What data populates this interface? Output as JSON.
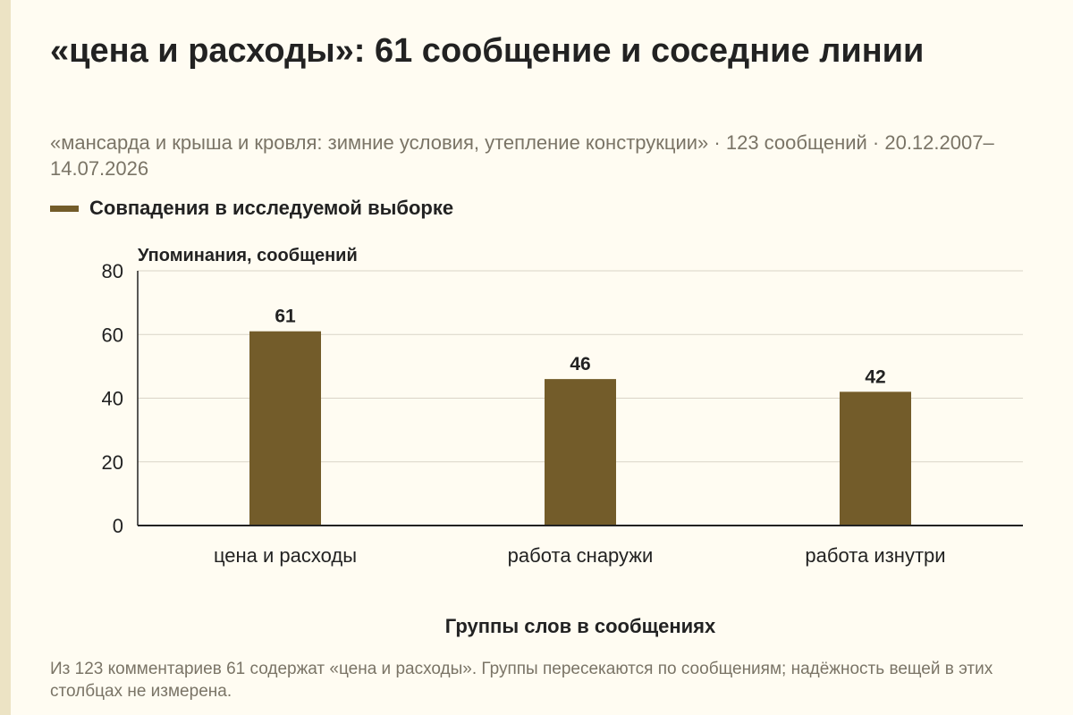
{
  "title": "«цена и расходы»: 61 сообщение и соседние линии",
  "subtitle": "«мансарда и крыша и кровля: зимние условия, утепление конструкции» · 123 сообщений · 20.12.2007–14.07.2026",
  "legend": {
    "label": "Совпадения в исследуемой выборке"
  },
  "footnote": "Из 123 комментариев 61 содержат «цена и расходы». Группы пересекаются по сообщениям; надёжность вещей в этих столбцах не измерена.",
  "colors": {
    "bar": "#735c2a",
    "grid": "#d9d4c7",
    "axis": "#222222",
    "background": "#fffcf2"
  },
  "chart_data": {
    "type": "bar",
    "categories": [
      "цена и расходы",
      "работа снаружи",
      "работа изнутри"
    ],
    "series": [
      {
        "name": "Совпадения в исследуемой выборке",
        "values": [
          61,
          46,
          42
        ]
      }
    ],
    "ylabel": "Упоминания, сообщений",
    "xlabel": "Группы слов в сообщениях",
    "ylim": [
      0,
      80
    ],
    "yticks": [
      0,
      20,
      40,
      60,
      80
    ],
    "grid": true,
    "data_labels": true,
    "legend_position": "top-left"
  }
}
